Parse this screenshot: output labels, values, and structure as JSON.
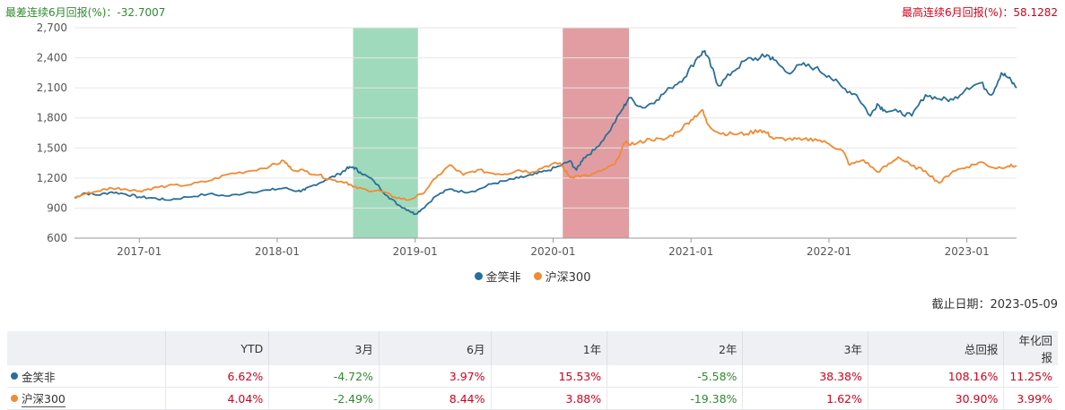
{
  "header": {
    "worst_label": "最差连续6月回报(%)：-32.7007",
    "best_label": "最高连续6月回报(%)：58.1282"
  },
  "legend": [
    {
      "name": "金笑非",
      "color": "#2a6f97"
    },
    {
      "name": "沪深300",
      "color": "#f28a30"
    }
  ],
  "cutoff_label": "截止日期：2023-05-09",
  "chart_data": {
    "type": "line",
    "ylim": [
      600,
      2700
    ],
    "yticks": [
      "600",
      "900",
      "1,200",
      "1,500",
      "1,800",
      "2,100",
      "2,400",
      "2,700"
    ],
    "xlim": [
      2016.53,
      2023.36
    ],
    "xticks": [
      {
        "label": "2017-01",
        "x": 2017.0
      },
      {
        "label": "2018-01",
        "x": 2018.0
      },
      {
        "label": "2019-01",
        "x": 2019.0
      },
      {
        "label": "2020-01",
        "x": 2020.0
      },
      {
        "label": "2021-01",
        "x": 2021.0
      },
      {
        "label": "2022-01",
        "x": 2022.0
      },
      {
        "label": "2023-01",
        "x": 2023.0
      }
    ],
    "shaded_periods": [
      {
        "from": 2018.55,
        "to": 2019.02,
        "color": "#8fd4b0"
      },
      {
        "from": 2020.07,
        "to": 2020.55,
        "color": "#dc8c90"
      }
    ],
    "series": [
      {
        "name": "金笑非",
        "color": "#2a6f97",
        "points": [
          [
            2016.53,
            1000
          ],
          [
            2016.6,
            1050
          ],
          [
            2016.7,
            1030
          ],
          [
            2016.8,
            1060
          ],
          [
            2016.9,
            1040
          ],
          [
            2017.0,
            1010
          ],
          [
            2017.1,
            1000
          ],
          [
            2017.2,
            980
          ],
          [
            2017.35,
            1010
          ],
          [
            2017.5,
            1040
          ],
          [
            2017.65,
            1020
          ],
          [
            2017.8,
            1060
          ],
          [
            2017.95,
            1080
          ],
          [
            2018.05,
            1100
          ],
          [
            2018.15,
            1070
          ],
          [
            2018.2,
            1080
          ],
          [
            2018.25,
            1120
          ],
          [
            2018.35,
            1180
          ],
          [
            2018.45,
            1240
          ],
          [
            2018.5,
            1290
          ],
          [
            2018.55,
            1310
          ],
          [
            2018.6,
            1260
          ],
          [
            2018.7,
            1170
          ],
          [
            2018.8,
            1020
          ],
          [
            2018.88,
            930
          ],
          [
            2018.95,
            880
          ],
          [
            2019.0,
            840
          ],
          [
            2019.05,
            890
          ],
          [
            2019.15,
            1020
          ],
          [
            2019.25,
            1090
          ],
          [
            2019.35,
            1060
          ],
          [
            2019.45,
            1080
          ],
          [
            2019.55,
            1140
          ],
          [
            2019.65,
            1170
          ],
          [
            2019.75,
            1200
          ],
          [
            2019.85,
            1230
          ],
          [
            2019.95,
            1270
          ],
          [
            2020.05,
            1320
          ],
          [
            2020.12,
            1370
          ],
          [
            2020.17,
            1280
          ],
          [
            2020.22,
            1400
          ],
          [
            2020.3,
            1480
          ],
          [
            2020.4,
            1650
          ],
          [
            2020.5,
            1880
          ],
          [
            2020.55,
            2000
          ],
          [
            2020.65,
            1900
          ],
          [
            2020.75,
            1980
          ],
          [
            2020.85,
            2100
          ],
          [
            2020.95,
            2200
          ],
          [
            2021.05,
            2410
          ],
          [
            2021.1,
            2470
          ],
          [
            2021.15,
            2300
          ],
          [
            2021.2,
            2120
          ],
          [
            2021.3,
            2260
          ],
          [
            2021.4,
            2380
          ],
          [
            2021.5,
            2400
          ],
          [
            2021.55,
            2430
          ],
          [
            2021.6,
            2380
          ],
          [
            2021.7,
            2250
          ],
          [
            2021.8,
            2330
          ],
          [
            2021.9,
            2300
          ],
          [
            2022.0,
            2220
          ],
          [
            2022.1,
            2100
          ],
          [
            2022.2,
            2030
          ],
          [
            2022.3,
            1820
          ],
          [
            2022.35,
            1940
          ],
          [
            2022.4,
            1880
          ],
          [
            2022.5,
            1860
          ],
          [
            2022.6,
            1820
          ],
          [
            2022.7,
            2030
          ],
          [
            2022.8,
            1990
          ],
          [
            2022.9,
            1980
          ],
          [
            2023.0,
            2100
          ],
          [
            2023.1,
            2150
          ],
          [
            2023.18,
            2030
          ],
          [
            2023.25,
            2250
          ],
          [
            2023.3,
            2200
          ],
          [
            2023.36,
            2100
          ]
        ]
      },
      {
        "name": "沪深300",
        "color": "#f28a30",
        "points": [
          [
            2016.53,
            1000
          ],
          [
            2016.6,
            1040
          ],
          [
            2016.7,
            1070
          ],
          [
            2016.8,
            1100
          ],
          [
            2016.9,
            1090
          ],
          [
            2017.0,
            1070
          ],
          [
            2017.1,
            1100
          ],
          [
            2017.2,
            1120
          ],
          [
            2017.35,
            1130
          ],
          [
            2017.5,
            1170
          ],
          [
            2017.65,
            1240
          ],
          [
            2017.8,
            1270
          ],
          [
            2017.95,
            1320
          ],
          [
            2018.05,
            1370
          ],
          [
            2018.1,
            1290
          ],
          [
            2018.2,
            1270
          ],
          [
            2018.3,
            1230
          ],
          [
            2018.4,
            1180
          ],
          [
            2018.5,
            1160
          ],
          [
            2018.55,
            1110
          ],
          [
            2018.65,
            1080
          ],
          [
            2018.75,
            1070
          ],
          [
            2018.85,
            1010
          ],
          [
            2018.95,
            980
          ],
          [
            2019.05,
            1040
          ],
          [
            2019.15,
            1200
          ],
          [
            2019.25,
            1330
          ],
          [
            2019.35,
            1230
          ],
          [
            2019.45,
            1280
          ],
          [
            2019.55,
            1250
          ],
          [
            2019.65,
            1240
          ],
          [
            2019.75,
            1280
          ],
          [
            2019.85,
            1260
          ],
          [
            2019.95,
            1320
          ],
          [
            2020.05,
            1350
          ],
          [
            2020.12,
            1210
          ],
          [
            2020.17,
            1220
          ],
          [
            2020.25,
            1220
          ],
          [
            2020.35,
            1270
          ],
          [
            2020.45,
            1340
          ],
          [
            2020.52,
            1550
          ],
          [
            2020.6,
            1540
          ],
          [
            2020.7,
            1590
          ],
          [
            2020.8,
            1580
          ],
          [
            2020.9,
            1660
          ],
          [
            2021.0,
            1780
          ],
          [
            2021.08,
            1880
          ],
          [
            2021.12,
            1740
          ],
          [
            2021.2,
            1650
          ],
          [
            2021.3,
            1640
          ],
          [
            2021.4,
            1640
          ],
          [
            2021.5,
            1680
          ],
          [
            2021.55,
            1650
          ],
          [
            2021.6,
            1590
          ],
          [
            2021.7,
            1590
          ],
          [
            2021.8,
            1580
          ],
          [
            2021.9,
            1590
          ],
          [
            2022.0,
            1540
          ],
          [
            2022.1,
            1470
          ],
          [
            2022.15,
            1330
          ],
          [
            2022.25,
            1380
          ],
          [
            2022.35,
            1260
          ],
          [
            2022.45,
            1350
          ],
          [
            2022.5,
            1410
          ],
          [
            2022.6,
            1320
          ],
          [
            2022.7,
            1270
          ],
          [
            2022.8,
            1150
          ],
          [
            2022.9,
            1270
          ],
          [
            2023.0,
            1310
          ],
          [
            2023.1,
            1360
          ],
          [
            2023.2,
            1300
          ],
          [
            2023.3,
            1320
          ],
          [
            2023.36,
            1320
          ]
        ]
      }
    ]
  },
  "table": {
    "headers": [
      "",
      "YTD",
      "3月",
      "6月",
      "1年",
      "2年",
      "3年",
      "总回报",
      "年化回报"
    ],
    "rows": [
      {
        "name": "金笑非",
        "color": "#2a6f97",
        "underline": false,
        "cells": [
          "6.62%",
          "-4.72%",
          "3.97%",
          "15.53%",
          "-5.58%",
          "38.38%",
          "108.16%",
          "11.25%"
        ]
      },
      {
        "name": "沪深300",
        "color": "#f28a30",
        "underline": true,
        "cells": [
          "4.04%",
          "-2.49%",
          "8.44%",
          "3.88%",
          "-19.38%",
          "1.62%",
          "30.90%",
          "3.99%"
        ]
      }
    ]
  }
}
